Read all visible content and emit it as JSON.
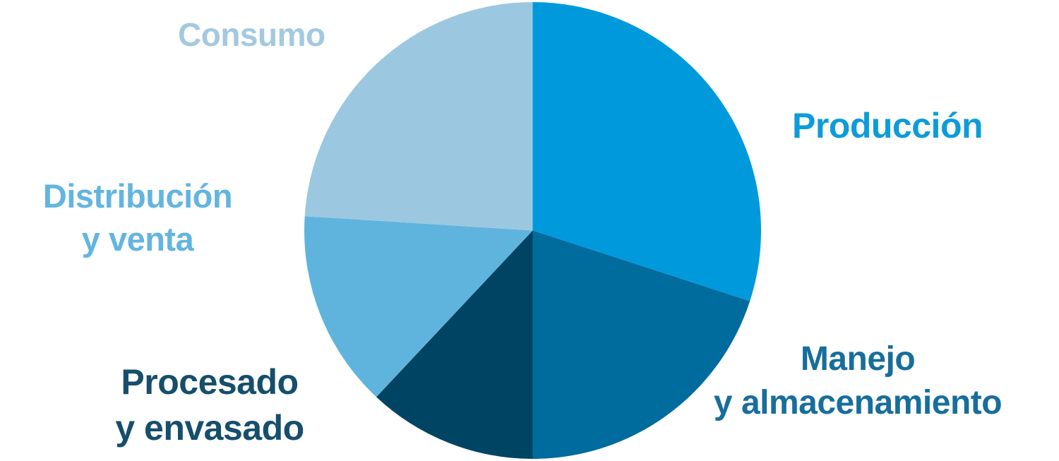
{
  "page": {
    "background_color": "#FFFFFF"
  },
  "chart_data": {
    "type": "pie",
    "title": "",
    "unit": "percent",
    "start_angle_deg": 0,
    "direction": "clockwise",
    "legend_position": "labels-around-pie",
    "slices": [
      {
        "label": "Producción",
        "label_lines": [
          "Producción"
        ],
        "value": 30,
        "color": "#009ADC",
        "label_color": "#0D9CD9"
      },
      {
        "label": "Manejo y almacenamiento",
        "label_lines": [
          "Manejo",
          "y almacenamiento"
        ],
        "value": 20,
        "color": "#006B9D",
        "label_color": "#176E9C"
      },
      {
        "label": "Procesado y envasado",
        "label_lines": [
          "Procesado",
          "y envasado"
        ],
        "value": 12,
        "color": "#004463",
        "label_color": "#164E6C"
      },
      {
        "label": "Distribución y venta",
        "label_lines": [
          "Distribución",
          "y venta"
        ],
        "value": 14,
        "color": "#5FB4DE",
        "label_color": "#63B5E0"
      },
      {
        "label": "Consumo",
        "label_lines": [
          "Consumo"
        ],
        "value": 24,
        "color": "#9BC8E0",
        "label_color": "#A3C9DF"
      }
    ]
  }
}
